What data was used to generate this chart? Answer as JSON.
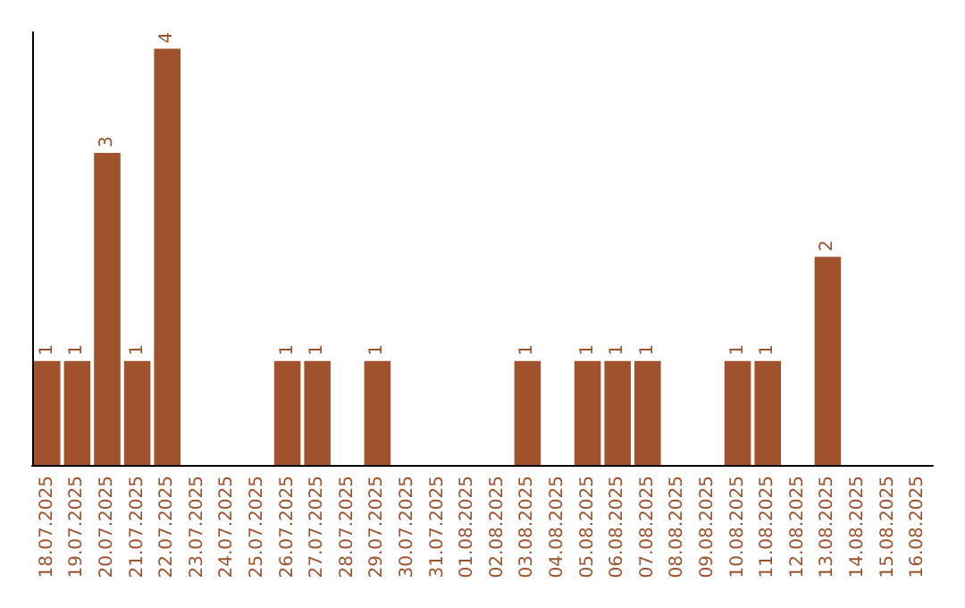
{
  "chart_data": {
    "type": "bar",
    "categories": [
      "18.07.2025",
      "19.07.2025",
      "20.07.2025",
      "21.07.2025",
      "22.07.2025",
      "23.07.2025",
      "24.07.2025",
      "25.07.2025",
      "26.07.2025",
      "27.07.2025",
      "28.07.2025",
      "29.07.2025",
      "30.07.2025",
      "31.07.2025",
      "01.08.2025",
      "02.08.2025",
      "03.08.2025",
      "04.08.2025",
      "05.08.2025",
      "06.08.2025",
      "07.08.2025",
      "08.08.2025",
      "09.08.2025",
      "10.08.2025",
      "11.08.2025",
      "12.08.2025",
      "13.08.2025",
      "14.08.2025",
      "15.08.2025",
      "16.08.2025"
    ],
    "values": [
      1,
      1,
      3,
      1,
      4,
      0,
      0,
      0,
      1,
      1,
      0,
      1,
      0,
      0,
      0,
      0,
      1,
      0,
      1,
      1,
      1,
      0,
      0,
      1,
      1,
      0,
      2,
      0,
      0,
      0
    ],
    "value_labels": [
      "1",
      "1",
      "3",
      "1",
      "4",
      null,
      null,
      null,
      "1",
      "1",
      null,
      "1",
      null,
      null,
      null,
      null,
      "1",
      null,
      "1",
      "1",
      "1",
      null,
      null,
      "1",
      "1",
      null,
      "2",
      null,
      null,
      null
    ],
    "color": "#a0522d",
    "tick_labels": "x"
  }
}
